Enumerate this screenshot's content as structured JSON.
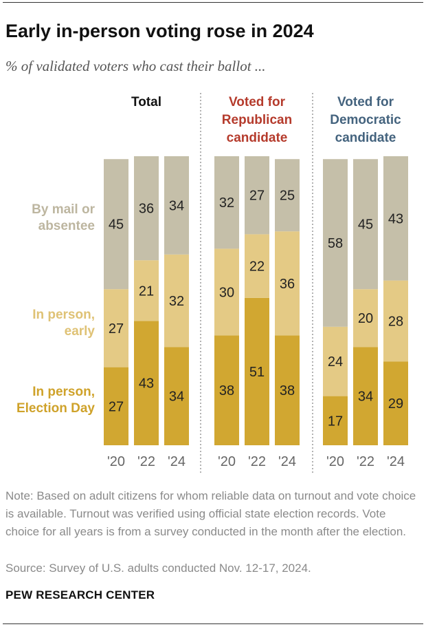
{
  "title": "Early in-person voting rose in 2024",
  "subtitle": "% of validated voters who cast their ballot ...",
  "note": "Note: Based on adult citizens for whom reliable data on turnout and vote choice is available. Turnout was verified using official state election records. Vote choice for all years is from a survey conducted in the month after the election.",
  "source": "Source: Survey of U.S. adults conducted Nov. 12-17, 2024.",
  "brand": "PEW RESEARCH CENTER",
  "colors": {
    "mail": "#c5bfa9",
    "early": "#e4ca85",
    "election_day": "#d1a731",
    "mail_label": "#bdb6a0",
    "early_label": "#dfc275",
    "election_day_label": "#cfa22a",
    "republican": "#b53b2c",
    "democratic": "#44637e",
    "total": "#111111"
  },
  "chart_data": {
    "type": "bar",
    "stacked": true,
    "categories": [
      "'20",
      "'22",
      "'24"
    ],
    "series_labels": {
      "mail": "By mail or absentee",
      "early": "In person, early",
      "election_day": "In person, Election Day"
    },
    "legend_lines": {
      "mail": [
        "By mail or",
        "absentee"
      ],
      "early": [
        "In person,",
        "early"
      ],
      "election_day": [
        "In person,",
        "Election Day"
      ]
    },
    "panels": [
      {
        "title": "Total",
        "title_lines": [
          "Total"
        ],
        "title_color": "#111111",
        "election_day": [
          27,
          43,
          34
        ],
        "early": [
          27,
          21,
          32
        ],
        "mail": [
          45,
          36,
          34
        ]
      },
      {
        "title": "Voted for Republican candidate",
        "title_lines": [
          "Voted for",
          "Republican",
          "candidate"
        ],
        "title_color": "#b53b2c",
        "election_day": [
          38,
          51,
          38
        ],
        "early": [
          30,
          22,
          36
        ],
        "mail": [
          32,
          27,
          25
        ]
      },
      {
        "title": "Voted for Democratic candidate",
        "title_lines": [
          "Voted for",
          "Democratic",
          "candidate"
        ],
        "title_color": "#44637e",
        "election_day": [
          17,
          34,
          29
        ],
        "early": [
          24,
          20,
          28
        ],
        "mail": [
          58,
          45,
          43
        ]
      }
    ]
  }
}
